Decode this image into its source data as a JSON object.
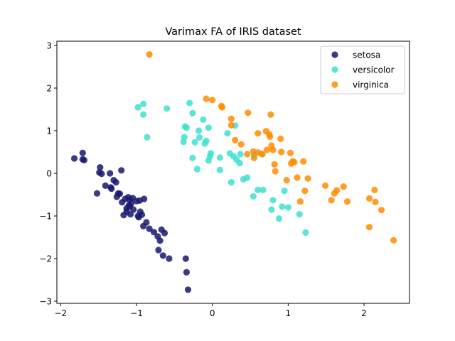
{
  "chart_data": {
    "type": "scatter",
    "title": "Varimax FA of IRIS dataset",
    "xlabel": "",
    "ylabel": "",
    "xlim": [
      -2.05,
      2.6
    ],
    "ylim": [
      -3.05,
      3.1
    ],
    "xticks": [
      -2,
      -1,
      0,
      1,
      2
    ],
    "yticks": [
      -3,
      -2,
      -1,
      0,
      1,
      2,
      3
    ],
    "xtick_labels": [
      "−2",
      "−1",
      "0",
      "1",
      "2"
    ],
    "ytick_labels": [
      "−3",
      "−2",
      "−1",
      "0",
      "1",
      "2",
      "3"
    ],
    "grid": false,
    "legend_position": "top-right",
    "series": [
      {
        "name": "setosa",
        "color": "#191970",
        "points": [
          [
            -1.82,
            0.35
          ],
          [
            -1.71,
            0.48
          ],
          [
            -1.71,
            0.33
          ],
          [
            -1.69,
            0.31
          ],
          [
            -1.52,
            -0.47
          ],
          [
            -1.48,
            0.14
          ],
          [
            -1.49,
            0.02
          ],
          [
            -1.46,
            -0.01
          ],
          [
            -1.41,
            -0.29
          ],
          [
            -1.35,
            0.0
          ],
          [
            -1.34,
            -0.33
          ],
          [
            -1.33,
            -0.36
          ],
          [
            -1.3,
            -0.16
          ],
          [
            -1.27,
            -0.21
          ],
          [
            -1.26,
            -0.55
          ],
          [
            -1.24,
            -0.47
          ],
          [
            -1.22,
            -0.48
          ],
          [
            -1.2,
            0.07
          ],
          [
            -1.19,
            -0.68
          ],
          [
            -1.17,
            -0.98
          ],
          [
            -1.15,
            -0.6
          ],
          [
            -1.13,
            -0.82
          ],
          [
            -1.13,
            -0.9
          ],
          [
            -1.11,
            -0.56
          ],
          [
            -1.1,
            -0.75
          ],
          [
            -1.09,
            -0.62
          ],
          [
            -1.09,
            -0.78
          ],
          [
            -1.08,
            -0.96
          ],
          [
            -1.07,
            -0.71
          ],
          [
            -1.05,
            -0.58
          ],
          [
            -1.04,
            -0.85
          ],
          [
            -1.0,
            -0.65
          ],
          [
            -0.98,
            -1.0
          ],
          [
            -0.97,
            -1.03
          ],
          [
            -0.96,
            -0.64
          ],
          [
            -0.95,
            -0.9
          ],
          [
            -0.93,
            -0.97
          ],
          [
            -0.91,
            -1.24
          ],
          [
            -0.9,
            -0.6
          ],
          [
            -0.87,
            -1.15
          ],
          [
            -0.83,
            -1.3
          ],
          [
            -0.77,
            -1.38
          ],
          [
            -0.72,
            -1.48
          ],
          [
            -0.69,
            -1.58
          ],
          [
            -0.71,
            -1.8
          ],
          [
            -0.67,
            -1.32
          ],
          [
            -0.65,
            -1.93
          ],
          [
            -0.63,
            -1.4
          ],
          [
            -0.57,
            -2.0
          ],
          [
            -0.35,
            -2.0
          ],
          [
            -0.34,
            -2.32
          ],
          [
            -0.32,
            -2.73
          ]
        ]
      },
      {
        "name": "versicolor",
        "color": "#40e0d0",
        "points": [
          [
            -0.98,
            1.55
          ],
          [
            -0.91,
            1.63
          ],
          [
            -0.91,
            1.38
          ],
          [
            -0.86,
            0.85
          ],
          [
            -0.6,
            1.52
          ],
          [
            -0.38,
            0.74
          ],
          [
            -0.36,
            1.1
          ],
          [
            -0.34,
            1.07
          ],
          [
            -0.37,
            0.85
          ],
          [
            -0.3,
            1.65
          ],
          [
            -0.26,
            1.41
          ],
          [
            -0.26,
            0.36
          ],
          [
            -0.23,
            0.73
          ],
          [
            -0.2,
            0.1
          ],
          [
            -0.18,
            1.0
          ],
          [
            -0.17,
            0.84
          ],
          [
            -0.12,
            1.26
          ],
          [
            -0.1,
            0.7
          ],
          [
            -0.08,
            0.76
          ],
          [
            -0.05,
            0.3
          ],
          [
            -0.03,
            0.4
          ],
          [
            -0.02,
            0.47
          ],
          [
            -0.05,
            1.07
          ],
          [
            0.1,
            0.08
          ],
          [
            0.1,
            0.37
          ],
          [
            0.2,
            0.94
          ],
          [
            0.23,
            0.47
          ],
          [
            0.25,
            -0.21
          ],
          [
            0.28,
            0.4
          ],
          [
            0.3,
            1.12
          ],
          [
            0.32,
            0.32
          ],
          [
            0.36,
            0.24
          ],
          [
            0.37,
            0.45
          ],
          [
            0.41,
            -0.14
          ],
          [
            0.46,
            -0.1
          ],
          [
            0.54,
            -0.54
          ],
          [
            0.55,
            0.43
          ],
          [
            0.6,
            -0.39
          ],
          [
            0.65,
            0.46
          ],
          [
            0.67,
            -0.39
          ],
          [
            0.78,
            -0.85
          ],
          [
            0.8,
            -0.63
          ],
          [
            0.88,
            -1.06
          ],
          [
            0.92,
            -0.78
          ],
          [
            0.95,
            -0.41
          ],
          [
            1.0,
            -0.8
          ],
          [
            1.15,
            -0.96
          ],
          [
            1.23,
            -1.39
          ]
        ]
      },
      {
        "name": "virginica",
        "color": "#ff8c00",
        "points": [
          [
            -0.83,
            2.79
          ],
          [
            -0.08,
            1.75
          ],
          [
            0.0,
            1.72
          ],
          [
            0.12,
            1.58
          ],
          [
            0.13,
            1.55
          ],
          [
            0.25,
            1.28
          ],
          [
            0.25,
            1.13
          ],
          [
            0.3,
            0.78
          ],
          [
            0.38,
            0.68
          ],
          [
            0.47,
            1.42
          ],
          [
            0.46,
            0.45
          ],
          [
            0.54,
            0.51
          ],
          [
            0.55,
            0.36
          ],
          [
            0.6,
            0.49
          ],
          [
            0.6,
            0.94
          ],
          [
            0.66,
            0.45
          ],
          [
            0.71,
            0.99
          ],
          [
            0.72,
            0.55
          ],
          [
            0.75,
            0.92
          ],
          [
            0.76,
            0.86
          ],
          [
            0.77,
            1.38
          ],
          [
            0.78,
            0.65
          ],
          [
            0.8,
            0.55
          ],
          [
            0.82,
            0.21
          ],
          [
            0.83,
            0.05
          ],
          [
            0.9,
            0.81
          ],
          [
            0.91,
            0.5
          ],
          [
            0.98,
            -0.16
          ],
          [
            1.03,
            0.48
          ],
          [
            1.04,
            0.23
          ],
          [
            1.06,
            0.28
          ],
          [
            1.08,
            0.26
          ],
          [
            1.12,
            -0.1
          ],
          [
            1.16,
            -0.66
          ],
          [
            1.2,
            0.28
          ],
          [
            1.22,
            -0.41
          ],
          [
            1.26,
            -0.12
          ],
          [
            1.49,
            -0.29
          ],
          [
            1.57,
            -0.63
          ],
          [
            1.61,
            -0.47
          ],
          [
            1.64,
            -0.4
          ],
          [
            1.73,
            -0.31
          ],
          [
            1.78,
            -0.66
          ],
          [
            2.07,
            -0.59
          ],
          [
            2.07,
            -1.26
          ],
          [
            2.14,
            -0.39
          ],
          [
            2.15,
            -0.67
          ],
          [
            2.23,
            -0.86
          ],
          [
            2.39,
            -1.57
          ]
        ]
      }
    ]
  }
}
